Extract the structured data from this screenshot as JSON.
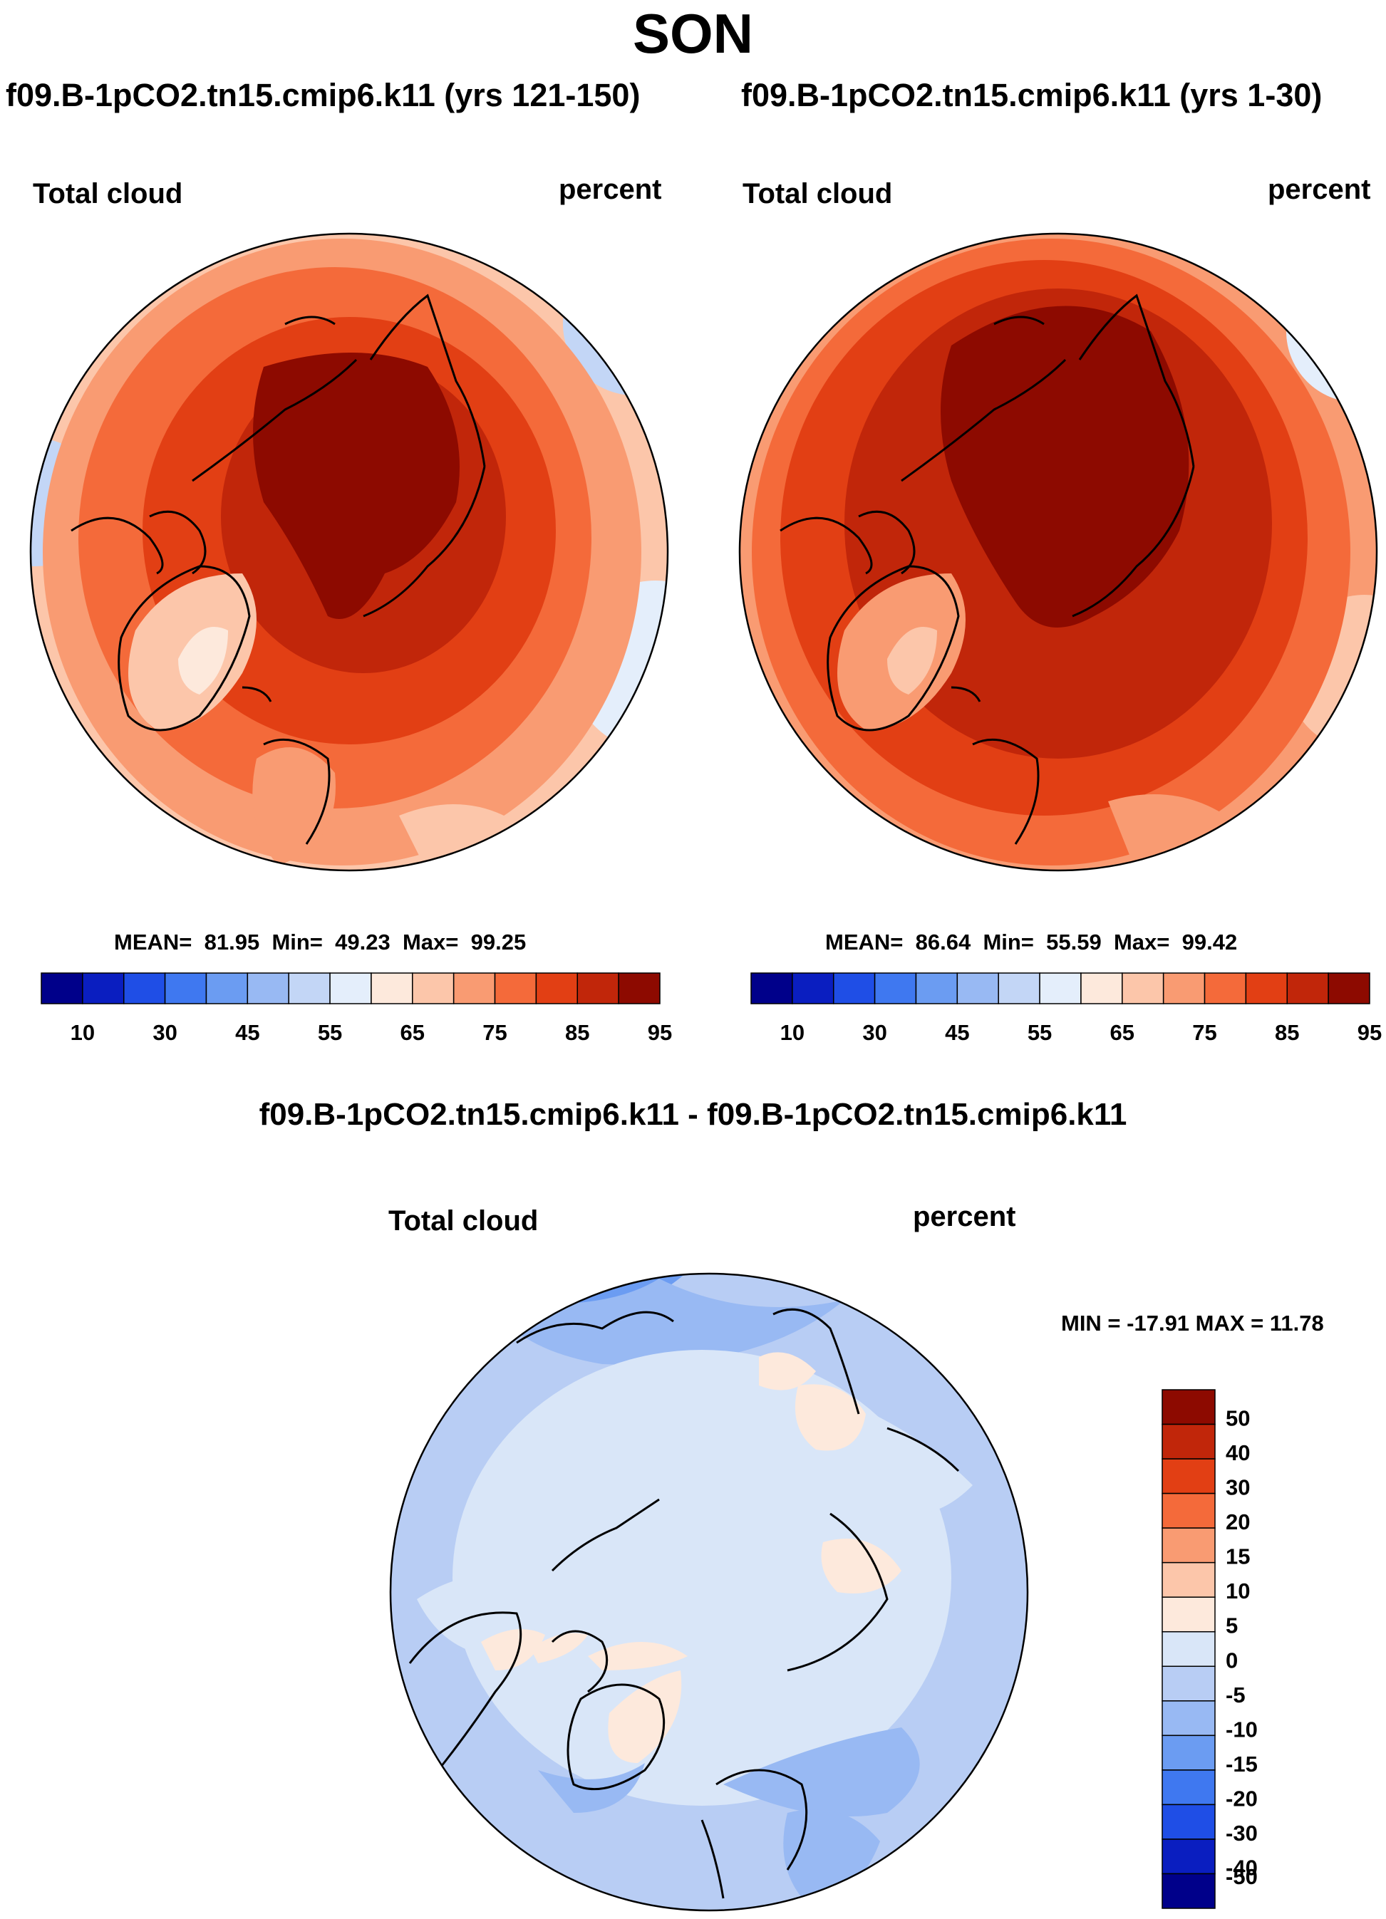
{
  "title": "SON",
  "panels": [
    {
      "run_title": "f09.B-1pCO2.tn15.cmip6.k11 (yrs 121-150)",
      "variable": "Total cloud",
      "units": "percent",
      "stats": {
        "mean_label": "MEAN=",
        "mean": "81.95",
        "min_label": "Min=",
        "min": "49.23",
        "max_label": "Max=",
        "max": "99.25"
      }
    },
    {
      "run_title": "f09.B-1pCO2.tn15.cmip6.k11 (yrs 1-30)",
      "variable": "Total cloud",
      "units": "percent",
      "stats": {
        "mean_label": "MEAN=",
        "mean": "86.64",
        "min_label": "Min=",
        "min": "55.59",
        "max_label": "Max=",
        "max": "99.42"
      }
    }
  ],
  "diff_panel": {
    "run_title": "f09.B-1pCO2.tn15.cmip6.k11 - f09.B-1pCO2.tn15.cmip6.k11",
    "variable": "Total cloud",
    "units": "percent",
    "range_text": "MIN = -17.91 MAX =  11.78"
  },
  "chart_data": [
    {
      "type": "heatmap",
      "projection": "north-polar-stereographic",
      "title": "f09.B-1pCO2.tn15.cmip6.k11 (yrs 121-150)",
      "variable": "Total cloud",
      "units": "percent",
      "mean": 81.95,
      "min": 49.23,
      "max": 99.25,
      "colorbar_ticks": [
        "10",
        "30",
        "45",
        "55",
        "65",
        "75",
        "85",
        "95"
      ],
      "colorbar_colors": [
        "#00008a",
        "#0a1ec0",
        "#1f4ee6",
        "#3f78f0",
        "#6b9cf2",
        "#98b9f3",
        "#c3d6f6",
        "#e4eefb",
        "#fde9dc",
        "#fcc6aa",
        "#f99b72",
        "#f46a3a",
        "#e23f14",
        "#c1260a",
        "#8d0a00"
      ]
    },
    {
      "type": "heatmap",
      "projection": "north-polar-stereographic",
      "title": "f09.B-1pCO2.tn15.cmip6.k11 (yrs 1-30)",
      "variable": "Total cloud",
      "units": "percent",
      "mean": 86.64,
      "min": 55.59,
      "max": 99.42,
      "colorbar_ticks": [
        "10",
        "30",
        "45",
        "55",
        "65",
        "75",
        "85",
        "95"
      ],
      "colorbar_colors": [
        "#00008a",
        "#0a1ec0",
        "#1f4ee6",
        "#3f78f0",
        "#6b9cf2",
        "#98b9f3",
        "#c3d6f6",
        "#e4eefb",
        "#fde9dc",
        "#fcc6aa",
        "#f99b72",
        "#f46a3a",
        "#e23f14",
        "#c1260a",
        "#8d0a00"
      ]
    },
    {
      "type": "heatmap",
      "projection": "north-polar-stereographic",
      "title": "f09.B-1pCO2.tn15.cmip6.k11 - f09.B-1pCO2.tn15.cmip6.k11",
      "variable": "Total cloud",
      "units": "percent",
      "min": -17.91,
      "max": 11.78,
      "colorbar_ticks": [
        "50",
        "40",
        "30",
        "20",
        "15",
        "10",
        "5",
        "0",
        "-5",
        "-10",
        "-15",
        "-20",
        "-30",
        "-40",
        "-50"
      ],
      "colorbar_colors": [
        "#8d0a00",
        "#c1260a",
        "#e23f14",
        "#f46a3a",
        "#f99b72",
        "#fcc6aa",
        "#fde9dc",
        "#d9e6f8",
        "#b8cdf4",
        "#98b9f3",
        "#6b9cf2",
        "#3f78f0",
        "#1f4ee6",
        "#0a1ec0",
        "#00008a"
      ]
    }
  ]
}
